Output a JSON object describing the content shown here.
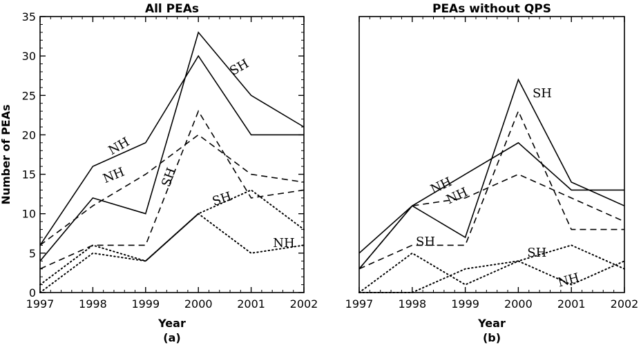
{
  "chart_data": [
    {
      "type": "line",
      "title": "All PEAs",
      "panel_label": "(a)",
      "xlabel": "Year",
      "ylabel": "Number of PEAs",
      "xlim": [
        1997,
        2002
      ],
      "ylim": [
        0,
        35
      ],
      "x_ticks": [
        1997,
        1998,
        1999,
        2000,
        2001,
        2002
      ],
      "y_ticks": [
        0,
        5,
        10,
        15,
        20,
        25,
        30,
        35
      ],
      "series": [
        {
          "style": "solid",
          "x": [
            1997,
            1998,
            1999,
            2000,
            2001,
            2002
          ],
          "y": [
            6,
            16,
            19,
            30,
            20,
            20
          ]
        },
        {
          "style": "solid",
          "x": [
            1997,
            1998,
            1999,
            2000,
            2001,
            2002
          ],
          "y": [
            4,
            12,
            10,
            33,
            25,
            21
          ]
        },
        {
          "style": "dashed",
          "x": [
            1997,
            1998,
            1999,
            2000,
            2001,
            2002
          ],
          "y": [
            6,
            11,
            15,
            20,
            15,
            14
          ]
        },
        {
          "style": "dashed",
          "x": [
            1997,
            1998,
            1999,
            2000,
            2001,
            2002
          ],
          "y": [
            3,
            6,
            6,
            23,
            12,
            13
          ]
        },
        {
          "style": "dotted",
          "x": [
            1997,
            1998,
            1999,
            2000,
            2001,
            2002
          ],
          "y": [
            1,
            6,
            4,
            10,
            13,
            8
          ]
        },
        {
          "style": "dotted",
          "x": [
            1997,
            1998,
            1999,
            2000,
            2001,
            2002
          ],
          "y": [
            0,
            5,
            4,
            10,
            5,
            6
          ]
        }
      ],
      "annotations": [
        {
          "text": "NH",
          "x": 1998.5,
          "y": 18.5,
          "angle": -30
        },
        {
          "text": "SH",
          "x": 2000.78,
          "y": 28.5,
          "angle": -30
        },
        {
          "text": "NH",
          "x": 1998.4,
          "y": 14.8,
          "angle": -22
        },
        {
          "text": "SH",
          "x": 1999.45,
          "y": 14.6,
          "angle": -70
        },
        {
          "text": "SH",
          "x": 2000.45,
          "y": 11.8,
          "angle": -18
        },
        {
          "text": "NH",
          "x": 2001.62,
          "y": 6.2,
          "angle": 0
        }
      ]
    },
    {
      "type": "line",
      "title": "PEAs without QPS",
      "panel_label": "(b)",
      "xlabel": "Year",
      "ylabel": "",
      "xlim": [
        1997,
        2002
      ],
      "ylim": [
        0,
        35
      ],
      "x_ticks": [
        1997,
        1998,
        1999,
        2000,
        2001,
        2002
      ],
      "y_ticks": [],
      "series": [
        {
          "style": "solid",
          "x": [
            1997,
            1998,
            1999,
            2000,
            2001,
            2002
          ],
          "y": [
            5,
            11,
            15,
            19,
            13,
            13
          ]
        },
        {
          "style": "solid",
          "x": [
            1997,
            1998,
            1999,
            2000,
            2001,
            2002
          ],
          "y": [
            3,
            11,
            7,
            27,
            14,
            11
          ]
        },
        {
          "style": "dashed",
          "x": [
            1997,
            1998,
            1999,
            2000,
            2001,
            2002
          ],
          "y": [
            3,
            6,
            6,
            23,
            8,
            8
          ]
        },
        {
          "style": "dashed",
          "x": [
            1997,
            1998,
            1999,
            2000,
            2001,
            2002
          ],
          "y": [
            3,
            11,
            12,
            15,
            12,
            9
          ]
        },
        {
          "style": "dotted",
          "x": [
            1997,
            1998,
            1999,
            2000,
            2001,
            2002
          ],
          "y": [
            0,
            5,
            1,
            4,
            1,
            4
          ]
        },
        {
          "style": "dotted",
          "x": [
            1997,
            1998,
            1999,
            2000,
            2001,
            2002
          ],
          "y": [
            0,
            0,
            3,
            4,
            6,
            3
          ]
        }
      ],
      "annotations": [
        {
          "text": "SH",
          "x": 2000.45,
          "y": 25.2,
          "angle": 0
        },
        {
          "text": "NH",
          "x": 1998.55,
          "y": 13.5,
          "angle": -25
        },
        {
          "text": "NH",
          "x": 1998.85,
          "y": 12.2,
          "angle": -25
        },
        {
          "text": "SH",
          "x": 1998.25,
          "y": 6.4,
          "angle": 0
        },
        {
          "text": "SH",
          "x": 2000.35,
          "y": 5.0,
          "angle": 0
        },
        {
          "text": "NH",
          "x": 2000.95,
          "y": 1.5,
          "angle": -15
        }
      ]
    }
  ]
}
